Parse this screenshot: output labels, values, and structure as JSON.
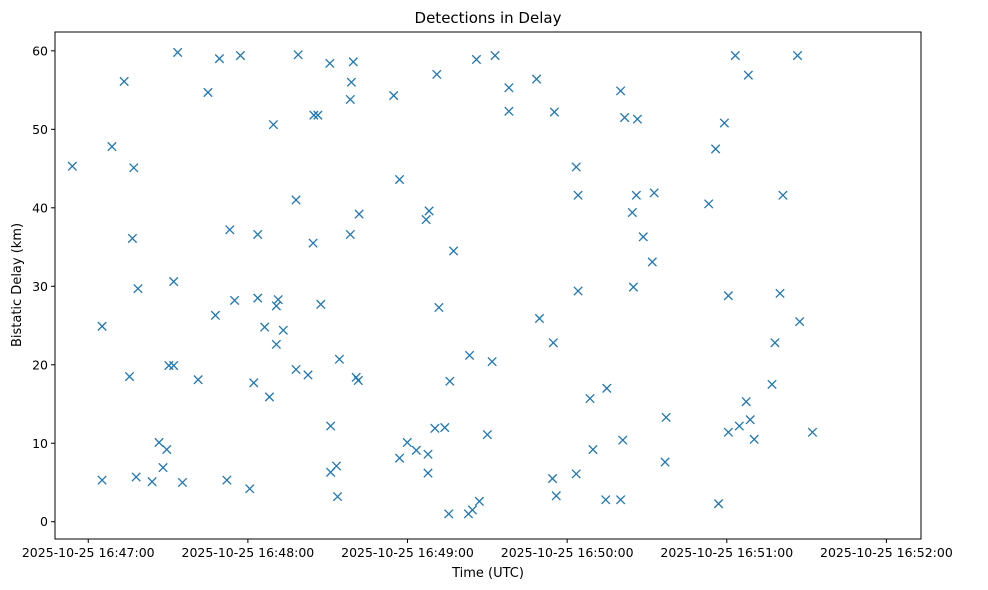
{
  "chart_data": {
    "type": "scatter",
    "title": "Detections in Delay",
    "xlabel": "Time (UTC)",
    "ylabel": "Bistatic Delay (km)",
    "marker": "x",
    "color": "#1f77b4",
    "x_unit": "seconds after 2025-10-25 16:47:00",
    "xlim": [
      -12.5,
      313
    ],
    "ylim": [
      -2.2,
      62.4
    ],
    "x_ticks": [
      {
        "value": 0,
        "label": "2025-10-25 16:47:00"
      },
      {
        "value": 60,
        "label": "2025-10-25 16:48:00"
      },
      {
        "value": 120,
        "label": "2025-10-25 16:49:00"
      },
      {
        "value": 180,
        "label": "2025-10-25 16:50:00"
      },
      {
        "value": 240,
        "label": "2025-10-25 16:51:00"
      },
      {
        "value": 300,
        "label": "2025-10-25 16:52:00"
      }
    ],
    "y_ticks": [
      {
        "value": 0,
        "label": "0"
      },
      {
        "value": 10,
        "label": "10"
      },
      {
        "value": 20,
        "label": "20"
      },
      {
        "value": 30,
        "label": "30"
      },
      {
        "value": 40,
        "label": "40"
      },
      {
        "value": 50,
        "label": "50"
      },
      {
        "value": 60,
        "label": "60"
      }
    ],
    "points": [
      [
        -6.0,
        45.3
      ],
      [
        5.2,
        24.9
      ],
      [
        5.2,
        5.3
      ],
      [
        8.9,
        47.8
      ],
      [
        13.5,
        56.1
      ],
      [
        15.5,
        18.5
      ],
      [
        16.6,
        36.1
      ],
      [
        17.1,
        45.1
      ],
      [
        18.0,
        5.7
      ],
      [
        18.7,
        29.7
      ],
      [
        24.0,
        5.1
      ],
      [
        26.6,
        10.1
      ],
      [
        28.1,
        6.9
      ],
      [
        29.5,
        9.2
      ],
      [
        30.3,
        19.9
      ],
      [
        32.1,
        19.9
      ],
      [
        32.1,
        30.6
      ],
      [
        33.6,
        59.8
      ],
      [
        35.4,
        5.0
      ],
      [
        41.3,
        18.1
      ],
      [
        45.0,
        54.7
      ],
      [
        47.8,
        26.3
      ],
      [
        49.3,
        59.0
      ],
      [
        52.1,
        5.3
      ],
      [
        53.2,
        37.2
      ],
      [
        55.0,
        28.2
      ],
      [
        57.2,
        59.4
      ],
      [
        60.7,
        4.2
      ],
      [
        62.2,
        17.7
      ],
      [
        63.7,
        36.6
      ],
      [
        63.7,
        28.5
      ],
      [
        66.3,
        24.8
      ],
      [
        68.1,
        15.9
      ],
      [
        69.6,
        50.6
      ],
      [
        70.7,
        27.5
      ],
      [
        70.7,
        22.6
      ],
      [
        71.4,
        28.3
      ],
      [
        73.3,
        24.4
      ],
      [
        78.1,
        41.0
      ],
      [
        78.1,
        19.4
      ],
      [
        78.9,
        59.5
      ],
      [
        82.6,
        18.7
      ],
      [
        84.5,
        35.5
      ],
      [
        84.8,
        51.8
      ],
      [
        86.3,
        51.8
      ],
      [
        87.4,
        27.7
      ],
      [
        90.8,
        58.4
      ],
      [
        91.1,
        12.2
      ],
      [
        91.1,
        6.3
      ],
      [
        93.3,
        7.1
      ],
      [
        93.7,
        3.2
      ],
      [
        94.4,
        20.7
      ],
      [
        98.5,
        53.8
      ],
      [
        98.5,
        36.6
      ],
      [
        98.9,
        56.0
      ],
      [
        99.6,
        58.6
      ],
      [
        100.7,
        18.4
      ],
      [
        101.5,
        18.0
      ],
      [
        101.8,
        39.2
      ],
      [
        114.8,
        54.3
      ],
      [
        117.0,
        8.1
      ],
      [
        117.0,
        43.6
      ],
      [
        119.9,
        10.1
      ],
      [
        123.3,
        9.1
      ],
      [
        127.0,
        38.5
      ],
      [
        127.7,
        6.2
      ],
      [
        127.7,
        8.6
      ],
      [
        128.1,
        39.6
      ],
      [
        130.3,
        11.9
      ],
      [
        131.0,
        57.0
      ],
      [
        131.8,
        27.3
      ],
      [
        134.0,
        12.0
      ],
      [
        135.5,
        1.0
      ],
      [
        135.9,
        17.9
      ],
      [
        137.3,
        34.5
      ],
      [
        142.9,
        1.0
      ],
      [
        143.3,
        21.2
      ],
      [
        144.4,
        1.5
      ],
      [
        145.9,
        58.9
      ],
      [
        147.0,
        2.6
      ],
      [
        150.0,
        11.1
      ],
      [
        151.8,
        20.4
      ],
      [
        152.9,
        59.4
      ],
      [
        158.1,
        55.3
      ],
      [
        158.1,
        52.3
      ],
      [
        168.5,
        56.4
      ],
      [
        169.6,
        25.9
      ],
      [
        174.5,
        5.5
      ],
      [
        174.8,
        22.8
      ],
      [
        175.2,
        52.2
      ],
      [
        175.9,
        3.3
      ],
      [
        183.4,
        6.1
      ],
      [
        183.4,
        45.2
      ],
      [
        184.1,
        41.6
      ],
      [
        184.1,
        29.4
      ],
      [
        188.6,
        15.7
      ],
      [
        189.7,
        9.2
      ],
      [
        194.5,
        2.8
      ],
      [
        194.9,
        17.0
      ],
      [
        200.1,
        2.8
      ],
      [
        200.1,
        54.9
      ],
      [
        200.9,
        10.4
      ],
      [
        201.6,
        51.5
      ],
      [
        204.5,
        39.4
      ],
      [
        204.9,
        29.9
      ],
      [
        206.0,
        41.6
      ],
      [
        206.4,
        51.3
      ],
      [
        208.6,
        36.3
      ],
      [
        212.0,
        33.1
      ],
      [
        212.7,
        41.9
      ],
      [
        216.8,
        7.6
      ],
      [
        217.2,
        13.3
      ],
      [
        233.2,
        40.5
      ],
      [
        235.8,
        47.5
      ],
      [
        236.9,
        2.3
      ],
      [
        239.1,
        50.8
      ],
      [
        240.6,
        28.8
      ],
      [
        240.6,
        11.4
      ],
      [
        243.2,
        59.4
      ],
      [
        244.7,
        12.2
      ],
      [
        247.3,
        15.3
      ],
      [
        248.1,
        56.9
      ],
      [
        248.8,
        13.0
      ],
      [
        250.3,
        10.5
      ],
      [
        257.0,
        17.5
      ],
      [
        258.1,
        22.8
      ],
      [
        260.0,
        29.1
      ],
      [
        261.1,
        41.6
      ],
      [
        266.6,
        59.4
      ],
      [
        267.4,
        25.5
      ],
      [
        272.2,
        11.4
      ]
    ]
  }
}
